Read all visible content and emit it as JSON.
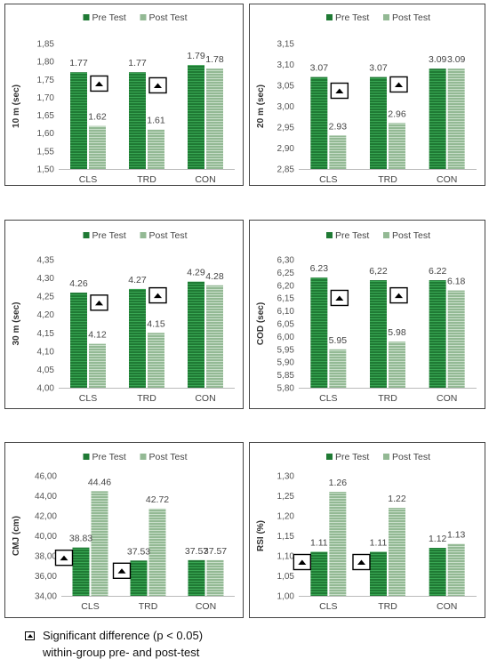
{
  "legend": {
    "pre_label": "Pre Test",
    "post_label": "Post Test"
  },
  "colors": {
    "pre": "#1f7a34",
    "post": "#93b994",
    "pre_light": "#39a653",
    "post_light": "#c8dec9"
  },
  "footnote": {
    "line1": "Significant difference (p < 0.05)",
    "line2": "within-group pre- and post-test"
  },
  "chart_data": [
    {
      "type": "bar",
      "ylabel": "10 m (sec)",
      "categories": [
        "CLS",
        "TRD",
        "CON"
      ],
      "ylim": [
        1.5,
        1.85
      ],
      "ystep": 0.05,
      "decimals": 2,
      "sep": ",",
      "series": [
        {
          "name": "Pre Test",
          "values": [
            1.77,
            1.77,
            1.79
          ],
          "labels": [
            "1.77",
            "1.77",
            "1.79"
          ]
        },
        {
          "name": "Post Test",
          "values": [
            1.62,
            1.61,
            1.78
          ],
          "labels": [
            "1.62",
            "1.61",
            "1.78"
          ]
        }
      ],
      "significant": [
        true,
        true,
        false
      ]
    },
    {
      "type": "bar",
      "ylabel": "20 m (sec)",
      "categories": [
        "CLS",
        "TRD",
        "CON"
      ],
      "ylim": [
        2.85,
        3.15
      ],
      "ystep": 0.05,
      "decimals": 2,
      "sep": ",",
      "series": [
        {
          "name": "Pre Test",
          "values": [
            3.07,
            3.07,
            3.09
          ],
          "labels": [
            "3.07",
            "3.07",
            "3.09"
          ]
        },
        {
          "name": "Post Test",
          "values": [
            2.93,
            2.96,
            3.09
          ],
          "labels": [
            "2.93",
            "2.96",
            "3.09"
          ]
        }
      ],
      "significant": [
        true,
        true,
        false
      ]
    },
    {
      "type": "bar",
      "ylabel": "30 m (sec)",
      "categories": [
        "CLS",
        "TRD",
        "CON"
      ],
      "ylim": [
        4.0,
        4.35
      ],
      "ystep": 0.05,
      "decimals": 2,
      "sep": ",",
      "series": [
        {
          "name": "Pre Test",
          "values": [
            4.26,
            4.27,
            4.29
          ],
          "labels": [
            "4.26",
            "4.27",
            "4.29"
          ]
        },
        {
          "name": "Post Test",
          "values": [
            4.12,
            4.15,
            4.28
          ],
          "labels": [
            "4.12",
            "4.15",
            "4.28"
          ]
        }
      ],
      "significant": [
        true,
        true,
        false
      ]
    },
    {
      "type": "bar",
      "ylabel": "COD (sec)",
      "categories": [
        "CLS",
        "TRD",
        "CON"
      ],
      "ylim": [
        5.8,
        6.3
      ],
      "ystep": 0.05,
      "decimals": 2,
      "sep": ",",
      "series": [
        {
          "name": "Pre Test",
          "values": [
            6.23,
            6.22,
            6.22
          ],
          "labels": [
            "6.23",
            "6,22",
            "6.22"
          ]
        },
        {
          "name": "Post Test",
          "values": [
            5.95,
            5.98,
            6.18
          ],
          "labels": [
            "5.95",
            "5.98",
            "6.18"
          ]
        }
      ],
      "significant": [
        true,
        true,
        false
      ]
    },
    {
      "type": "bar",
      "ylabel": "CMJ (cm)",
      "categories": [
        "CLS",
        "TRD",
        "CON"
      ],
      "ylim": [
        34.0,
        46.0
      ],
      "ystep": 2,
      "decimals": 2,
      "sep": ",",
      "series": [
        {
          "name": "Pre Test",
          "values": [
            38.83,
            37.53,
            37.57
          ],
          "labels": [
            "38.83",
            "37.53",
            "37.57"
          ]
        },
        {
          "name": "Post Test",
          "values": [
            44.46,
            42.72,
            37.57
          ],
          "labels": [
            "44.46",
            "42.72",
            "37.57"
          ]
        }
      ],
      "significant": [
        true,
        true,
        false
      ]
    },
    {
      "type": "bar",
      "ylabel": "RSI (%)",
      "categories": [
        "CLS",
        "TRD",
        "CON"
      ],
      "ylim": [
        1.0,
        1.3
      ],
      "ystep": 0.05,
      "decimals": 2,
      "sep": ",",
      "series": [
        {
          "name": "Pre Test",
          "values": [
            1.11,
            1.11,
            1.12
          ],
          "labels": [
            "1.11",
            "1.11",
            "1.12"
          ]
        },
        {
          "name": "Post Test",
          "values": [
            1.26,
            1.22,
            1.13
          ],
          "labels": [
            "1.26",
            "1.22",
            "1.13"
          ]
        }
      ],
      "significant": [
        true,
        true,
        false
      ]
    }
  ]
}
